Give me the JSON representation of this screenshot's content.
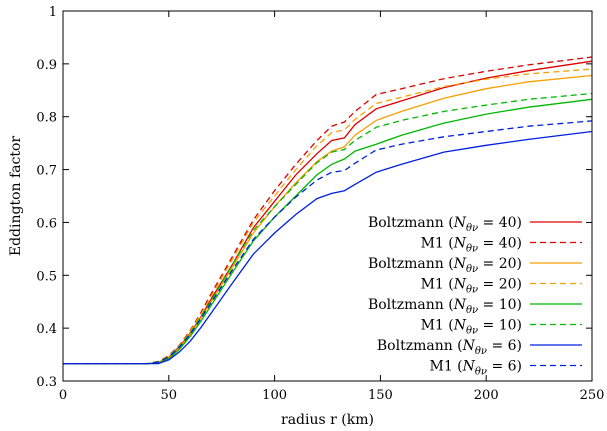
{
  "chart_data": {
    "type": "line",
    "xlabel": "radius r (km)",
    "ylabel": "Eddington factor",
    "xlim": [
      0,
      250
    ],
    "ylim": [
      0.3,
      1.0
    ],
    "xticks": [
      0,
      50,
      100,
      150,
      200,
      250
    ],
    "yticks": [
      0.3,
      0.4,
      0.5,
      0.6,
      0.7,
      0.8,
      0.9,
      1.0
    ],
    "xtick_labels": [
      "0",
      "50",
      "100",
      "150",
      "200",
      "250"
    ],
    "ytick_labels": [
      "0.3",
      "0.4",
      "0.5",
      "0.6",
      "0.7",
      "0.8",
      "0.9",
      "1"
    ],
    "grid": false,
    "legend_position": "bottom-right",
    "series": [
      {
        "name": "Boltzmann (N_θν = 40)",
        "legend": {
          "prefix": "Boltzmann",
          "n": "40"
        },
        "color": "#dd0000",
        "dash": false,
        "x": [
          0,
          40,
          45,
          50,
          55,
          60,
          65,
          70,
          80,
          90,
          100,
          110,
          120,
          127,
          133,
          138,
          148,
          160,
          180,
          200,
          220,
          250
        ],
        "y": [
          0.333,
          0.333,
          0.335,
          0.345,
          0.365,
          0.39,
          0.42,
          0.455,
          0.52,
          0.59,
          0.64,
          0.69,
          0.73,
          0.755,
          0.76,
          0.785,
          0.815,
          0.83,
          0.855,
          0.873,
          0.887,
          0.905
        ]
      },
      {
        "name": "M1 (N_θν = 40)",
        "legend": {
          "prefix": "M1",
          "n": "40"
        },
        "color": "#dd0000",
        "dash": true,
        "x": [
          0,
          40,
          45,
          50,
          55,
          60,
          65,
          70,
          80,
          90,
          100,
          110,
          120,
          127,
          133,
          138,
          148,
          160,
          180,
          200,
          220,
          250
        ],
        "y": [
          0.333,
          0.333,
          0.337,
          0.348,
          0.368,
          0.395,
          0.428,
          0.465,
          0.535,
          0.605,
          0.66,
          0.71,
          0.755,
          0.782,
          0.79,
          0.81,
          0.842,
          0.853,
          0.872,
          0.886,
          0.898,
          0.913
        ]
      },
      {
        "name": "Boltzmann (N_θν = 20)",
        "legend": {
          "prefix": "Boltzmann",
          "n": "20"
        },
        "color": "#f5a000",
        "dash": false,
        "x": [
          0,
          40,
          45,
          50,
          55,
          60,
          65,
          70,
          80,
          90,
          100,
          110,
          120,
          127,
          133,
          138,
          148,
          160,
          180,
          200,
          220,
          250
        ],
        "y": [
          0.333,
          0.333,
          0.335,
          0.344,
          0.363,
          0.388,
          0.418,
          0.45,
          0.515,
          0.58,
          0.63,
          0.675,
          0.715,
          0.735,
          0.743,
          0.765,
          0.793,
          0.81,
          0.835,
          0.853,
          0.866,
          0.878
        ]
      },
      {
        "name": "M1 (N_θν = 20)",
        "legend": {
          "prefix": "M1",
          "n": "20"
        },
        "color": "#f5a000",
        "dash": true,
        "x": [
          0,
          40,
          45,
          50,
          55,
          60,
          65,
          70,
          80,
          90,
          100,
          110,
          120,
          127,
          133,
          138,
          148,
          160,
          180,
          200,
          220,
          250
        ],
        "y": [
          0.333,
          0.333,
          0.337,
          0.347,
          0.367,
          0.393,
          0.425,
          0.46,
          0.53,
          0.6,
          0.65,
          0.7,
          0.745,
          0.77,
          0.775,
          0.795,
          0.825,
          0.837,
          0.857,
          0.871,
          0.881,
          0.89
        ]
      },
      {
        "name": "Boltzmann (N_θν = 10)",
        "legend": {
          "prefix": "Boltzmann",
          "n": "10"
        },
        "color": "#00b800",
        "dash": false,
        "x": [
          0,
          40,
          45,
          50,
          55,
          60,
          65,
          70,
          80,
          90,
          100,
          110,
          120,
          127,
          133,
          138,
          148,
          160,
          180,
          200,
          220,
          250
        ],
        "y": [
          0.333,
          0.333,
          0.334,
          0.342,
          0.36,
          0.384,
          0.412,
          0.443,
          0.505,
          0.565,
          0.61,
          0.65,
          0.69,
          0.71,
          0.72,
          0.735,
          0.748,
          0.765,
          0.788,
          0.805,
          0.818,
          0.833
        ]
      },
      {
        "name": "M1 (N_θν = 10)",
        "legend": {
          "prefix": "M1",
          "n": "10"
        },
        "color": "#00b800",
        "dash": true,
        "x": [
          0,
          40,
          45,
          50,
          55,
          60,
          65,
          70,
          80,
          90,
          100,
          110,
          120,
          127,
          133,
          138,
          148,
          160,
          180,
          200,
          220,
          250
        ],
        "y": [
          0.333,
          0.333,
          0.336,
          0.346,
          0.365,
          0.39,
          0.42,
          0.452,
          0.52,
          0.585,
          0.63,
          0.672,
          0.713,
          0.733,
          0.738,
          0.755,
          0.78,
          0.793,
          0.81,
          0.822,
          0.833,
          0.844
        ]
      },
      {
        "name": "Boltzmann (N_θν = 6)",
        "legend": {
          "prefix": "Boltzmann",
          "n": " 6"
        },
        "color": "#0020e0",
        "dash": false,
        "x": [
          0,
          40,
          45,
          50,
          55,
          60,
          65,
          70,
          80,
          90,
          100,
          110,
          120,
          127,
          133,
          138,
          148,
          160,
          180,
          200,
          220,
          250
        ],
        "y": [
          0.333,
          0.333,
          0.333,
          0.34,
          0.355,
          0.375,
          0.4,
          0.428,
          0.485,
          0.54,
          0.58,
          0.615,
          0.645,
          0.655,
          0.66,
          0.672,
          0.695,
          0.71,
          0.733,
          0.746,
          0.757,
          0.772
        ]
      },
      {
        "name": "M1 (N_θν = 6)",
        "legend": {
          "prefix": "M1",
          "n": " 6"
        },
        "color": "#0020e0",
        "dash": true,
        "x": [
          0,
          40,
          45,
          50,
          55,
          60,
          65,
          70,
          80,
          90,
          100,
          110,
          120,
          127,
          133,
          138,
          148,
          160,
          180,
          200,
          220,
          250
        ],
        "y": [
          0.333,
          0.333,
          0.336,
          0.345,
          0.364,
          0.388,
          0.417,
          0.448,
          0.51,
          0.568,
          0.61,
          0.648,
          0.68,
          0.695,
          0.698,
          0.712,
          0.737,
          0.748,
          0.762,
          0.772,
          0.782,
          0.792
        ]
      }
    ]
  }
}
